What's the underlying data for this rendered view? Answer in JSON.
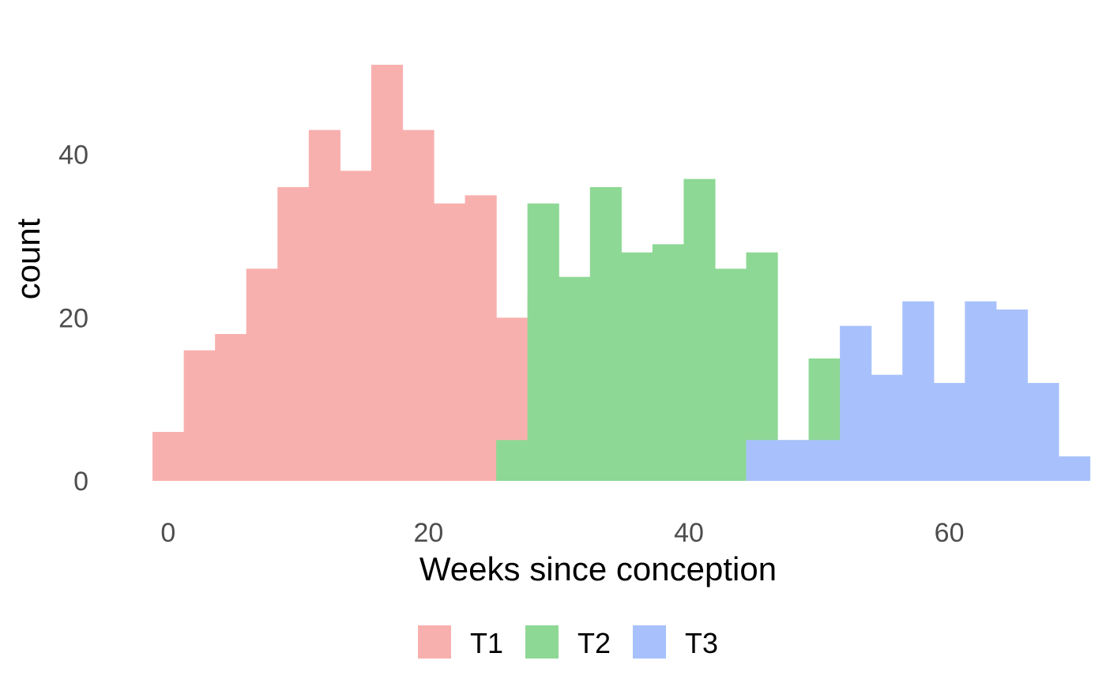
{
  "chart_data": {
    "type": "bar",
    "subtype": "histogram",
    "xlabel": "Weeks since conception",
    "ylabel": "count",
    "xlim": [
      -2.6,
      68.4
    ],
    "ylim": [
      -3,
      57
    ],
    "x_ticks": [
      0,
      20,
      40,
      60
    ],
    "y_ticks": [
      0,
      20,
      40
    ],
    "grid": false,
    "legend_position": "bottom",
    "bin_width": 2.4,
    "series": [
      {
        "name": "T1",
        "color": "#F8B0AE",
        "bins": [
          {
            "x0": -1.2,
            "x1": 1.2,
            "count": 6
          },
          {
            "x0": 1.2,
            "x1": 3.6,
            "count": 16
          },
          {
            "x0": 3.6,
            "x1": 6.0,
            "count": 18
          },
          {
            "x0": 6.0,
            "x1": 8.4,
            "count": 26
          },
          {
            "x0": 8.4,
            "x1": 10.8,
            "count": 36
          },
          {
            "x0": 10.8,
            "x1": 13.2,
            "count": 43
          },
          {
            "x0": 13.2,
            "x1": 15.6,
            "count": 38
          },
          {
            "x0": 15.6,
            "x1": 18.0,
            "count": 51
          },
          {
            "x0": 18.0,
            "x1": 20.4,
            "count": 43
          },
          {
            "x0": 20.4,
            "x1": 22.8,
            "count": 34
          },
          {
            "x0": 22.8,
            "x1": 25.2,
            "count": 35
          },
          {
            "x0": 25.2,
            "x1": 27.6,
            "count": 20
          },
          {
            "x0": 27.6,
            "x1": 30.0,
            "count": 23
          },
          {
            "x0": 30.0,
            "x1": 32.4,
            "count": 11
          },
          {
            "x0": 32.4,
            "x1": 34.8,
            "count": 3
          },
          {
            "x0": 34.8,
            "x1": 37.2,
            "count": 3
          }
        ]
      },
      {
        "name": "T2",
        "color": "#8DD894",
        "bins": [
          {
            "x0": 25.2,
            "x1": 27.6,
            "count": 5
          },
          {
            "x0": 27.6,
            "x1": 30.0,
            "count": 34
          },
          {
            "x0": 30.0,
            "x1": 32.4,
            "count": 25
          },
          {
            "x0": 32.4,
            "x1": 34.8,
            "count": 36
          },
          {
            "x0": 34.8,
            "x1": 37.2,
            "count": 28
          },
          {
            "x0": 37.2,
            "x1": 39.6,
            "count": 29
          },
          {
            "x0": 39.6,
            "x1": 42.0,
            "count": 37
          },
          {
            "x0": 42.0,
            "x1": 44.4,
            "count": 26
          },
          {
            "x0": 44.4,
            "x1": 46.8,
            "count": 28
          },
          {
            "x0": 46.8,
            "x1": 49.2,
            "count": 5
          },
          {
            "x0": 49.2,
            "x1": 51.6,
            "count": 15
          }
        ]
      },
      {
        "name": "T3",
        "color": "#A8C1FC",
        "bins": [
          {
            "x0": 44.4,
            "x1": 46.8,
            "count": 5
          },
          {
            "x0": 46.8,
            "x1": 49.2,
            "count": 5
          },
          {
            "x0": 49.2,
            "x1": 51.6,
            "count": 5
          },
          {
            "x0": 51.6,
            "x1": 54.0,
            "count": 19
          },
          {
            "x0": 54.0,
            "x1": 56.4,
            "count": 13
          },
          {
            "x0": 56.4,
            "x1": 58.8,
            "count": 22
          },
          {
            "x0": 58.8,
            "x1": 61.2,
            "count": 12
          },
          {
            "x0": 61.2,
            "x1": 63.6,
            "count": 22
          },
          {
            "x0": 63.6,
            "x1": 66.0,
            "count": 21
          },
          {
            "x0": 66.0,
            "x1": 68.4,
            "count": 12
          },
          {
            "x0": 68.4,
            "x1": 70.8,
            "count": 3
          }
        ]
      }
    ]
  }
}
